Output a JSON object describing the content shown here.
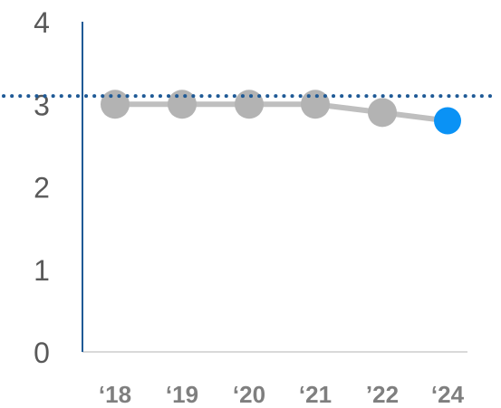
{
  "chart_data": {
    "type": "line",
    "categories": [
      "‘18",
      "‘19",
      "‘20",
      "‘21",
      "’22",
      "‘24"
    ],
    "series": [
      {
        "values": [
          3.0,
          3.0,
          3.0,
          3.0,
          2.9,
          2.8
        ]
      }
    ],
    "y_ticks": [
      "0",
      "1",
      "2",
      "3",
      "4"
    ],
    "ylim": [
      0,
      4
    ],
    "reference_line": {
      "value": 3.1,
      "style": "dotted"
    },
    "grid": false,
    "colors": {
      "line": "#bfbfbf",
      "marker": "#b3b3b3",
      "highlight_marker": "#0a92f5",
      "reference_line": "#1f5a96",
      "y_axis": "#1f5a96",
      "x_axis": "#d9d9d9"
    }
  }
}
